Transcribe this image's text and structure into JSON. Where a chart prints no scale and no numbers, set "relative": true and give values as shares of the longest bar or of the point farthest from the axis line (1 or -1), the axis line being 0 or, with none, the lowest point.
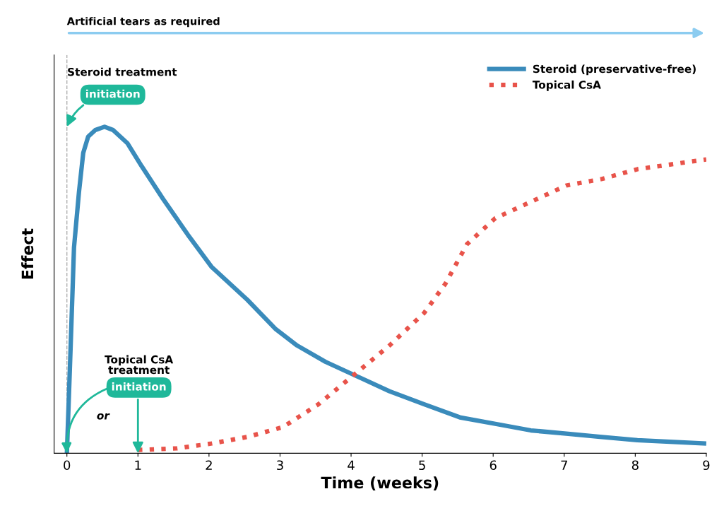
{
  "chart_data": {
    "type": "line",
    "relative": true,
    "xlabel": "Time (weeks)",
    "ylabel": "Effect",
    "xlim": [
      -0.18,
      9
    ],
    "xticks": [
      0,
      1,
      2,
      3,
      4,
      5,
      6,
      7,
      8,
      9
    ],
    "grid": false,
    "legend": "top right",
    "series": [
      {
        "name": "Steroid (preservative-free)",
        "color": "#3a8bbb",
        "line_style": "solid",
        "x": [
          0,
          0.05,
          0.1,
          0.17,
          0.23,
          0.3,
          0.4,
          0.53,
          0.65,
          0.85,
          1.05,
          1.35,
          1.7,
          2.04,
          2.54,
          2.94,
          3.24,
          3.64,
          4.04,
          4.54,
          5.03,
          5.53,
          6.03,
          6.53,
          7.03,
          7.53,
          8.03,
          9
        ],
        "values": [
          0,
          0.31,
          0.63,
          0.8,
          0.92,
          0.97,
          0.99,
          1.0,
          0.99,
          0.95,
          0.88,
          0.78,
          0.67,
          0.57,
          0.47,
          0.38,
          0.33,
          0.28,
          0.24,
          0.19,
          0.15,
          0.11,
          0.09,
          0.07,
          0.06,
          0.05,
          0.04,
          0.03
        ]
      },
      {
        "name": "Topical CsA",
        "color": "#e8534a",
        "line_style": "dotted",
        "x": [
          1,
          1.55,
          2.04,
          2.54,
          3.04,
          3.54,
          4.04,
          4.54,
          5.03,
          5.33,
          5.63,
          6.03,
          6.53,
          7.03,
          7.53,
          8.03,
          9
        ],
        "values": [
          0.01,
          0.015,
          0.03,
          0.05,
          0.08,
          0.15,
          0.24,
          0.33,
          0.43,
          0.52,
          0.64,
          0.72,
          0.77,
          0.82,
          0.84,
          0.87,
          0.9
        ]
      }
    ],
    "ref_lines": [
      {
        "axis": "x",
        "value": 0,
        "color": "#b0b0b0",
        "line_style": "dashed"
      }
    ],
    "annotations": [
      "Artificial tears as required",
      "Steroid treatment",
      {
        "text": "initiation",
        "x": 0,
        "y": 1.0
      },
      "Topical CsA\ntreatment",
      {
        "text": "initiation",
        "x": 1,
        "y": 0
      },
      "or"
    ]
  }
}
